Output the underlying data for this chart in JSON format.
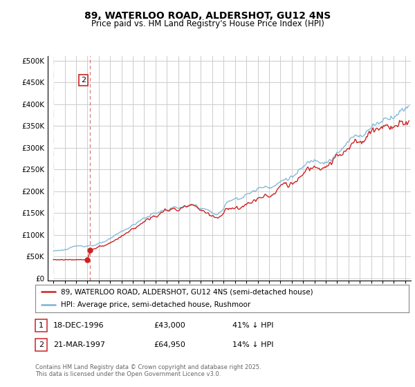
{
  "title": "89, WATERLOO ROAD, ALDERSHOT, GU12 4NS",
  "subtitle": "Price paid vs. HM Land Registry's House Price Index (HPI)",
  "legend_line1": "89, WATERLOO ROAD, ALDERSHOT, GU12 4NS (semi-detached house)",
  "legend_line2": "HPI: Average price, semi-detached house, Rushmoor",
  "transactions": [
    {
      "num": 1,
      "date": "18-DEC-1996",
      "price": 43000,
      "pct": "41% ↓ HPI"
    },
    {
      "num": 2,
      "date": "21-MAR-1997",
      "price": 64950,
      "pct": "14% ↓ HPI"
    }
  ],
  "t1_x": 1996.96,
  "t1_y": 43000,
  "t2_x": 1997.22,
  "t2_y": 64950,
  "yticks": [
    0,
    50000,
    100000,
    150000,
    200000,
    250000,
    300000,
    350000,
    400000,
    450000,
    500000
  ],
  "ylim": [
    -5000,
    510000
  ],
  "xlim_start": 1993.5,
  "xlim_end": 2025.5,
  "hpi_color": "#7ab3d4",
  "price_color": "#cc2222",
  "vline_color": "#cc6666",
  "grid_color": "#cccccc",
  "hatch_bg_color": "#e8e8e8",
  "bg_color": "#ffffff",
  "footnote": "Contains HM Land Registry data © Crown copyright and database right 2025.\nThis data is licensed under the Open Government Licence v3.0.",
  "title_fontsize": 10,
  "subtitle_fontsize": 8.5
}
